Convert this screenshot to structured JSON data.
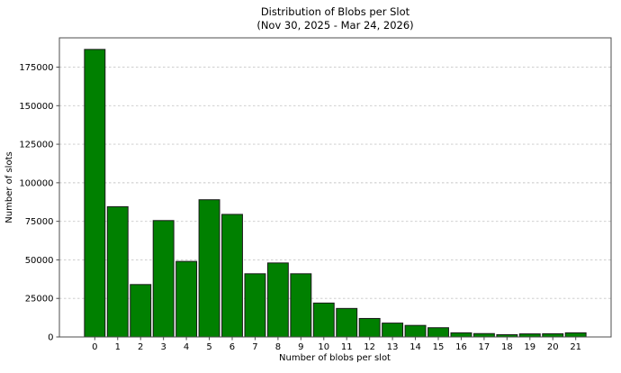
{
  "chart_data": {
    "type": "bar",
    "title": "Distribution of Blobs per Slot",
    "subtitle": "(Nov 30, 2025 - Mar 24, 2026)",
    "xlabel": "Number of blobs per slot",
    "ylabel": "Number of slots",
    "categories": [
      "0",
      "1",
      "2",
      "3",
      "4",
      "5",
      "6",
      "7",
      "8",
      "9",
      "10",
      "11",
      "12",
      "13",
      "14",
      "15",
      "16",
      "17",
      "18",
      "19",
      "20",
      "21"
    ],
    "values": [
      186500,
      84500,
      34000,
      75500,
      49000,
      89000,
      79500,
      41000,
      48000,
      41000,
      22000,
      18500,
      12000,
      9000,
      7500,
      6000,
      2700,
      2200,
      1500,
      2000,
      2100,
      2700
    ],
    "yticks": [
      0,
      25000,
      50000,
      75000,
      100000,
      125000,
      150000,
      175000
    ],
    "ylim": [
      0,
      194000
    ],
    "grid": "horizontal-dashed",
    "legend": "none",
    "colors": {
      "bar_fill": "#008000",
      "bar_edge": "#1a1a1a",
      "grid_line": "#c8c8c8",
      "frame": "#4d4d4d",
      "tick_text": "#000000"
    }
  }
}
